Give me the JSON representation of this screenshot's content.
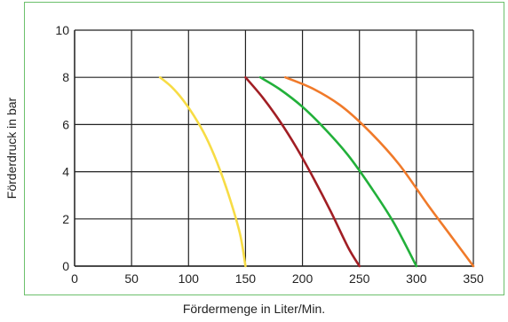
{
  "chart_data": {
    "type": "line",
    "xlabel": "Fördermenge in Liter/Min.",
    "ylabel": "Förderdruck in bar",
    "xlim": [
      0,
      350
    ],
    "ylim": [
      0,
      10
    ],
    "x_ticks": [
      "0",
      "50",
      "100",
      "150",
      "200",
      "250",
      "300",
      "350"
    ],
    "y_ticks": [
      "0",
      "2",
      "4",
      "6",
      "8",
      "10"
    ],
    "x_tick_values": [
      0,
      50,
      100,
      150,
      200,
      250,
      300,
      350
    ],
    "y_tick_values": [
      0,
      2,
      4,
      6,
      8,
      10
    ],
    "grid": true,
    "series": [
      {
        "color": "#f7dc45",
        "x": [
          75,
          85,
          95,
          105,
          115,
          125,
          135,
          145,
          150
        ],
        "y": [
          8.0,
          7.6,
          7.05,
          6.35,
          5.5,
          4.4,
          3.05,
          1.4,
          0
        ]
      },
      {
        "color": "#a11e24",
        "x": [
          150,
          165,
          180,
          195,
          210,
          225,
          240,
          250
        ],
        "y": [
          8.0,
          7.15,
          6.15,
          5.0,
          3.7,
          2.3,
          0.8,
          0
        ]
      },
      {
        "color": "#22b03a",
        "x": [
          163,
          180,
          200,
          220,
          240,
          260,
          280,
          300
        ],
        "y": [
          8.0,
          7.5,
          6.75,
          5.8,
          4.7,
          3.35,
          1.85,
          0
        ]
      },
      {
        "color": "#f07a2a",
        "x": [
          185,
          210,
          235,
          260,
          285,
          310,
          330,
          350
        ],
        "y": [
          8.0,
          7.5,
          6.75,
          5.65,
          4.3,
          2.6,
          1.3,
          0
        ]
      }
    ]
  }
}
